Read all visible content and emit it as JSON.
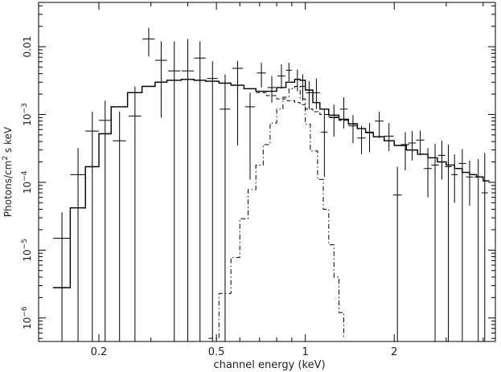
{
  "chart_data": {
    "type": "line",
    "title": "",
    "xlabel": "channel energy (keV)",
    "ylabel_html": "Photons/cm² s keV",
    "ylabel": {
      "pre": "Photons/cm",
      "sup": "2",
      "post": " s keV"
    },
    "x_scale": "log",
    "y_scale": "log",
    "xlim": [
      0.125,
      4.4
    ],
    "ylim": [
      4.5e-07,
      0.045
    ],
    "x_ticks": [
      {
        "value": 0.2,
        "label": "0.2"
      },
      {
        "value": 0.5,
        "label": "0.5"
      },
      {
        "value": 1,
        "label": "1"
      },
      {
        "value": 2,
        "label": "2"
      }
    ],
    "y_ticks": [
      {
        "value": 1e-06,
        "label_base": "10",
        "label_exp": "−6"
      },
      {
        "value": 1e-05,
        "label_base": "10",
        "label_exp": "−5"
      },
      {
        "value": 0.0001,
        "label_base": "10",
        "label_exp": "−4"
      },
      {
        "value": 0.001,
        "label_base": "10",
        "label_exp": "−3"
      },
      {
        "value": 0.01,
        "label": "0.01"
      }
    ],
    "series": [
      {
        "style": "solid",
        "edges": [
          0.14,
          0.16,
          0.18,
          0.2,
          0.22,
          0.25,
          0.28,
          0.31,
          0.34,
          0.38,
          0.42,
          0.46,
          0.51,
          0.56,
          0.62,
          0.68,
          0.74,
          0.8,
          0.86,
          0.92,
          0.96,
          1.0,
          1.06,
          1.12,
          1.2,
          1.3,
          1.4,
          1.5,
          1.6,
          1.7,
          1.85,
          2.0,
          2.2,
          2.4,
          2.6,
          2.8,
          3.0,
          3.2,
          3.4,
          3.6,
          3.8,
          4.0,
          4.2
        ],
        "values": [
          2.8e-06,
          4.2e-05,
          0.00017,
          0.00052,
          0.0013,
          0.0021,
          0.0026,
          0.003,
          0.0032,
          0.0033,
          0.0032,
          0.0031,
          0.0029,
          0.0027,
          0.0024,
          0.0022,
          0.0022,
          0.0025,
          0.003,
          0.0033,
          0.0032,
          0.0023,
          0.0015,
          0.0012,
          0.00098,
          0.00085,
          0.00073,
          0.00062,
          0.00054,
          0.00047,
          0.00041,
          0.00035,
          0.0003,
          0.00026,
          0.00023,
          0.0002,
          0.00018,
          0.00016,
          0.00014,
          0.00013,
          0.00012,
          0.000105
        ]
      },
      {
        "style": "dash",
        "edges": [
          0.14,
          0.16,
          0.18,
          0.2,
          0.22,
          0.25,
          0.28,
          0.31,
          0.34,
          0.38,
          0.42,
          0.46,
          0.51,
          0.56,
          0.62,
          0.68,
          0.74,
          0.8,
          0.86,
          0.92,
          0.96,
          1.0,
          1.06,
          1.12,
          1.2,
          1.3,
          1.4,
          1.5,
          1.6,
          1.7,
          1.85,
          2.0,
          2.2,
          2.4,
          2.6,
          2.8,
          3.0,
          3.2,
          3.4,
          3.6,
          3.8,
          4.0,
          4.2
        ],
        "values": [
          2.8e-06,
          4.2e-05,
          0.00017,
          0.00052,
          0.0013,
          0.0021,
          0.0026,
          0.003,
          0.0032,
          0.0033,
          0.0032,
          0.0031,
          0.0029,
          0.0027,
          0.0024,
          0.0021,
          0.0019,
          0.0017,
          0.0016,
          0.0015,
          0.0014,
          0.0012,
          0.0011,
          0.001,
          0.00092,
          0.00082,
          0.00072,
          0.00062,
          0.00054,
          0.00047,
          0.00041,
          0.00035,
          0.0003,
          0.00026,
          0.00023,
          0.0002,
          0.00018,
          0.00016,
          0.00014,
          0.00013,
          0.00012,
          0.000105
        ]
      },
      {
        "style": "dashdot",
        "edges": [
          0.47,
          0.51,
          0.56,
          0.6,
          0.64,
          0.68,
          0.72,
          0.76,
          0.8,
          0.84,
          0.88,
          0.92,
          0.96,
          1.0,
          1.04,
          1.1,
          1.15,
          1.2,
          1.25,
          1.3,
          1.35
        ],
        "values": [
          5e-07,
          2.3e-06,
          7.8e-06,
          2.9e-05,
          7.8e-05,
          0.00018,
          0.00036,
          0.00075,
          0.0012,
          0.0018,
          0.0024,
          0.0026,
          0.0017,
          0.00072,
          0.00029,
          0.00011,
          4e-05,
          1.2e-05,
          4e-06,
          1.2e-06,
          5e-07
        ]
      }
    ],
    "data_points": [
      {
        "x": 0.15,
        "xerr": 0.01,
        "y": 1.5e-05,
        "ylo": 4.5e-07,
        "yhi": 3.6e-05
      },
      {
        "x": 0.17,
        "xerr": 0.01,
        "y": 0.00013,
        "ylo": 4.5e-07,
        "yhi": 0.00032
      },
      {
        "x": 0.19,
        "xerr": 0.01,
        "y": 0.00057,
        "ylo": 4.5e-07,
        "yhi": 0.0011
      },
      {
        "x": 0.21,
        "xerr": 0.01,
        "y": 0.00082,
        "ylo": 4.5e-07,
        "yhi": 0.0016
      },
      {
        "x": 0.235,
        "xerr": 0.012,
        "y": 0.00041,
        "ylo": 4.5e-07,
        "yhi": 0.0011
      },
      {
        "x": 0.265,
        "xerr": 0.013,
        "y": 0.00095,
        "ylo": 4.5e-07,
        "yhi": 0.0026
      },
      {
        "x": 0.295,
        "xerr": 0.014,
        "y": 0.013,
        "ylo": 0.0072,
        "yhi": 0.019
      },
      {
        "x": 0.325,
        "xerr": 0.015,
        "y": 0.0063,
        "ylo": 0.0009,
        "yhi": 0.012
      },
      {
        "x": 0.36,
        "xerr": 0.017,
        "y": 0.0044,
        "ylo": 4.5e-07,
        "yhi": 0.012
      },
      {
        "x": 0.4,
        "xerr": 0.019,
        "y": 0.0044,
        "ylo": 4.5e-07,
        "yhi": 0.013
      },
      {
        "x": 0.44,
        "xerr": 0.02,
        "y": 0.0068,
        "ylo": 4.5e-07,
        "yhi": 0.012
      },
      {
        "x": 0.485,
        "xerr": 0.02,
        "y": 0.0034,
        "ylo": 4.5e-07,
        "yhi": 0.0061
      },
      {
        "x": 0.535,
        "xerr": 0.022,
        "y": 0.0012,
        "ylo": 4.5e-07,
        "yhi": 0.0039
      },
      {
        "x": 0.59,
        "xerr": 0.025,
        "y": 0.0048,
        "ylo": 0.00035,
        "yhi": 0.0062
      },
      {
        "x": 0.65,
        "xerr": 0.025,
        "y": 0.0013,
        "ylo": 0.00011,
        "yhi": 0.0021
      },
      {
        "x": 0.71,
        "xerr": 0.025,
        "y": 0.0041,
        "ylo": 0.0025,
        "yhi": 0.0058
      },
      {
        "x": 0.77,
        "xerr": 0.025,
        "y": 0.0025,
        "ylo": 0.0015,
        "yhi": 0.0037
      },
      {
        "x": 0.83,
        "xerr": 0.025,
        "y": 0.0037,
        "ylo": 0.0024,
        "yhi": 0.0055
      },
      {
        "x": 0.88,
        "xerr": 0.02,
        "y": 0.0045,
        "ylo": 0.0031,
        "yhi": 0.0058
      },
      {
        "x": 0.94,
        "xerr": 0.02,
        "y": 0.0033,
        "ylo": 0.0022,
        "yhi": 0.0046
      },
      {
        "x": 0.98,
        "xerr": 0.02,
        "y": 0.0026,
        "ylo": 0.0016,
        "yhi": 0.0039
      },
      {
        "x": 1.03,
        "xerr": 0.025,
        "y": 0.0021,
        "ylo": 0.0012,
        "yhi": 0.0031
      },
      {
        "x": 1.09,
        "xerr": 0.03,
        "y": 0.0021,
        "ylo": 0.0012,
        "yhi": 0.0034
      },
      {
        "x": 1.16,
        "xerr": 0.03,
        "y": 0.00055,
        "ylo": 0.00012,
        "yhi": 0.0012
      },
      {
        "x": 1.25,
        "xerr": 0.04,
        "y": 0.0009,
        "ylo": 0.00047,
        "yhi": 0.0014
      },
      {
        "x": 1.35,
        "xerr": 0.04,
        "y": 0.0012,
        "ylo": 0.00062,
        "yhi": 0.0018
      },
      {
        "x": 1.45,
        "xerr": 0.05,
        "y": 0.00068,
        "ylo": 0.00038,
        "yhi": 0.00098
      },
      {
        "x": 1.55,
        "xerr": 0.05,
        "y": 0.00045,
        "ylo": 0.00026,
        "yhi": 0.00068
      },
      {
        "x": 1.65,
        "xerr": 0.05,
        "y": 0.00055,
        "ylo": 0.00028,
        "yhi": 0.00075
      },
      {
        "x": 1.78,
        "xerr": 0.06,
        "y": 0.0008,
        "ylo": 0.00045,
        "yhi": 0.0011
      },
      {
        "x": 1.92,
        "xerr": 0.07,
        "y": 0.00048,
        "ylo": 0.00029,
        "yhi": 0.00075
      },
      {
        "x": 2.05,
        "xerr": 0.07,
        "y": 6.5e-05,
        "ylo": 4.5e-07,
        "yhi": 0.00017
      },
      {
        "x": 2.18,
        "xerr": 0.07,
        "y": 0.00036,
        "ylo": 0.00015,
        "yhi": 0.00055
      },
      {
        "x": 2.3,
        "xerr": 0.07,
        "y": 0.00038,
        "ylo": 0.00021,
        "yhi": 0.00057
      },
      {
        "x": 2.45,
        "xerr": 0.08,
        "y": 0.00042,
        "ylo": 0.00025,
        "yhi": 0.00058
      },
      {
        "x": 2.6,
        "xerr": 0.08,
        "y": 0.00016,
        "ylo": 6e-05,
        "yhi": 0.00032
      },
      {
        "x": 2.75,
        "xerr": 0.08,
        "y": 0.00018,
        "ylo": 4.5e-07,
        "yhi": 0.00037
      },
      {
        "x": 2.9,
        "xerr": 0.08,
        "y": 0.00025,
        "ylo": 0.00011,
        "yhi": 0.00041
      },
      {
        "x": 3.05,
        "xerr": 0.08,
        "y": 0.00017,
        "ylo": 4.5e-07,
        "yhi": 0.00036
      },
      {
        "x": 3.2,
        "xerr": 0.08,
        "y": 0.00013,
        "ylo": 5e-05,
        "yhi": 0.00026
      },
      {
        "x": 3.4,
        "xerr": 0.1,
        "y": 0.00019,
        "ylo": 4.5e-07,
        "yhi": 0.00031
      },
      {
        "x": 3.6,
        "xerr": 0.1,
        "y": 0.00012,
        "ylo": 4.5e-05,
        "yhi": 0.00021
      },
      {
        "x": 3.85,
        "xerr": 0.12,
        "y": 0.00012,
        "ylo": 4.5e-07,
        "yhi": 0.00022
      },
      {
        "x": 4.05,
        "xerr": 0.1,
        "y": 7e-05,
        "ylo": 4.5e-07,
        "yhi": 0.00027
      }
    ]
  }
}
